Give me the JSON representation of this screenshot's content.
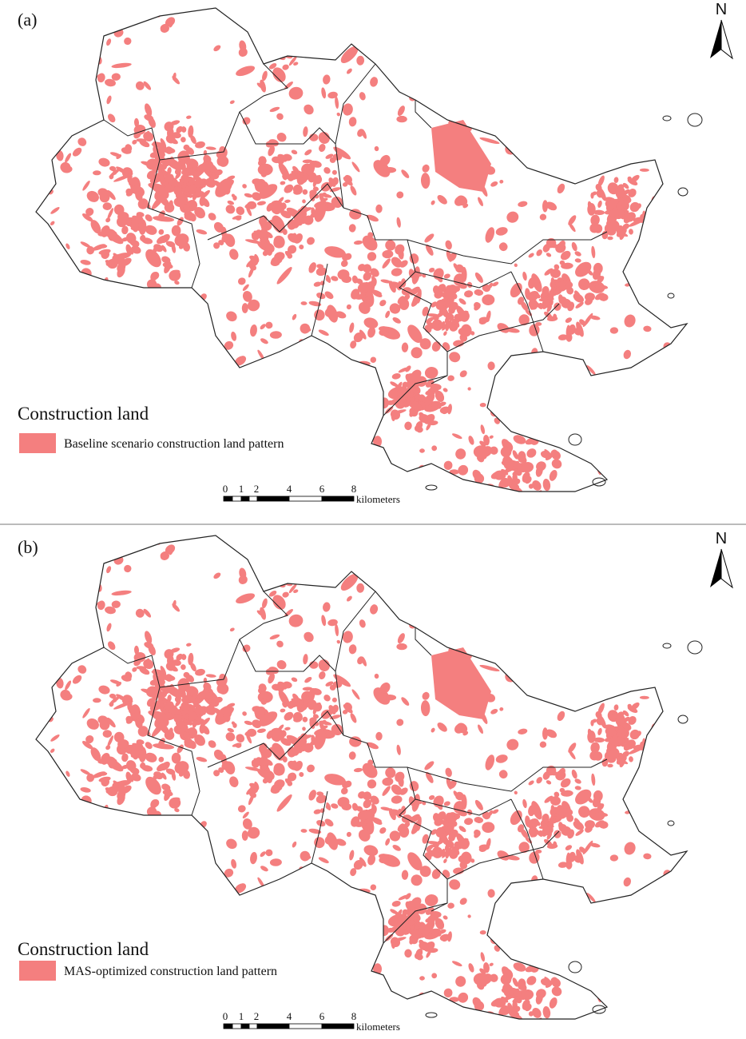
{
  "panels": [
    {
      "label": "(a)",
      "north": "N",
      "legend": {
        "title": "Construction land",
        "item": "Baseline scenario construction land pattern"
      },
      "scale": {
        "labels": [
          "0",
          "1",
          "2",
          "4",
          "6",
          "8"
        ],
        "unit": "kilometers"
      }
    },
    {
      "label": "(b)",
      "north": "N",
      "legend": {
        "title": "Construction land",
        "item": "MAS-optimized construction land pattern"
      },
      "scale": {
        "labels": [
          "0",
          "1",
          "2",
          "4",
          "6",
          "8"
        ],
        "unit": "kilometers"
      }
    }
  ]
}
